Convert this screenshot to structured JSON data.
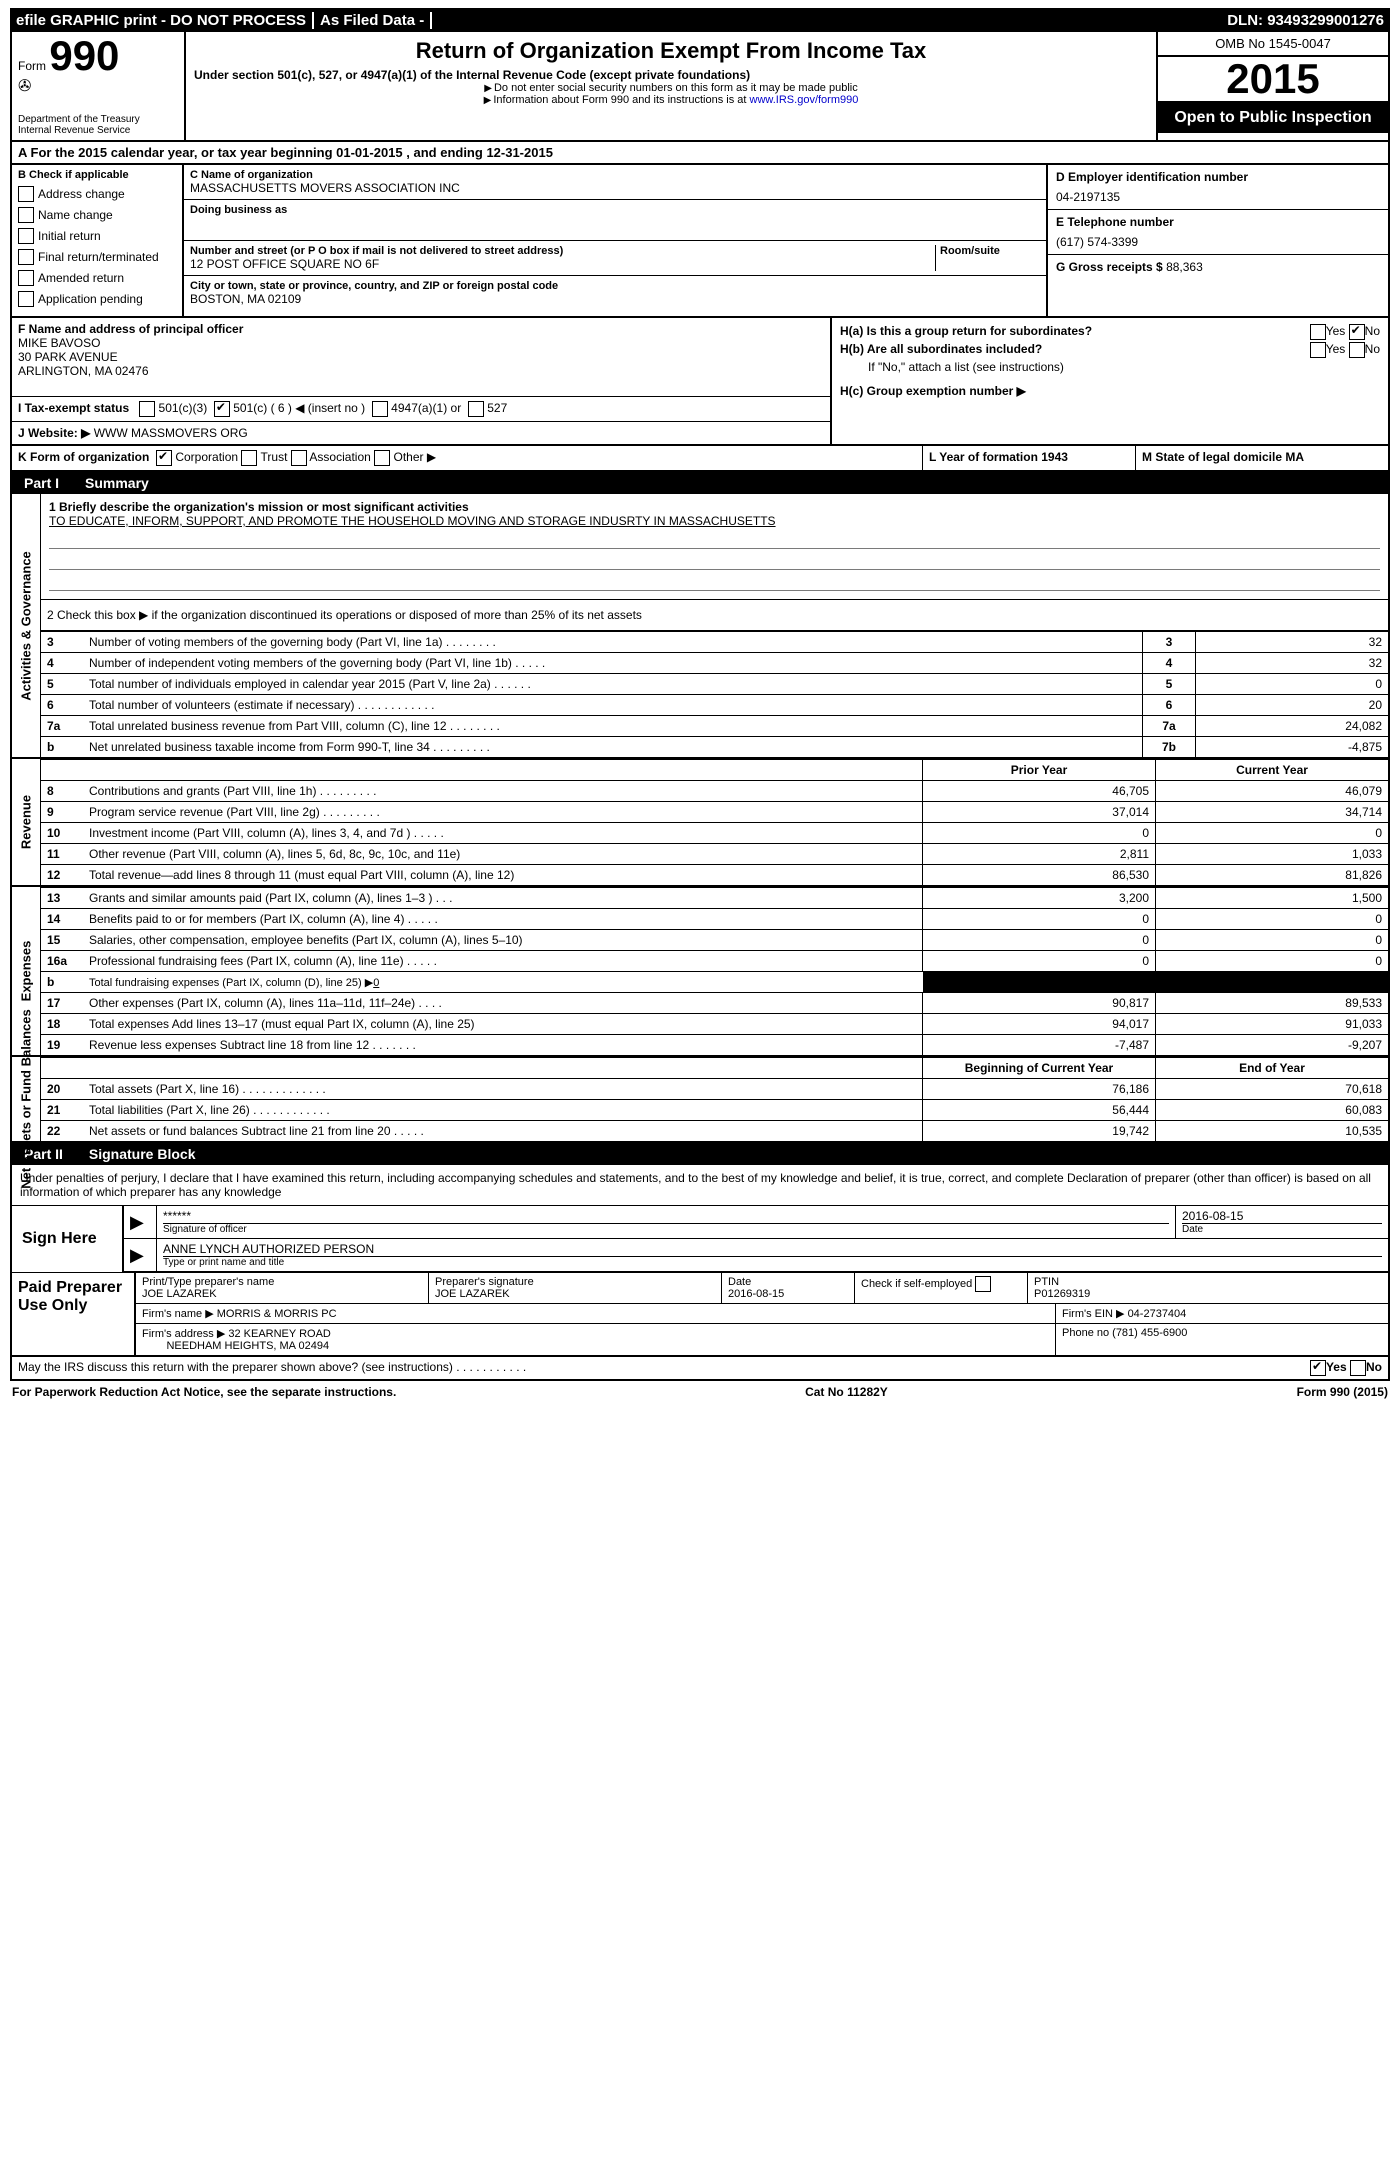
{
  "topbar": {
    "efile": "efile GRAPHIC print - DO NOT PROCESS",
    "asfiled": "As Filed Data -",
    "dln_label": "DLN:",
    "dln": "93493299001276"
  },
  "header": {
    "form_word": "Form",
    "form_number": "990",
    "dept": "Department of the Treasury",
    "irs": "Internal Revenue Service",
    "title": "Return of Organization Exempt From Income Tax",
    "subtitle": "Under section 501(c), 527, or 4947(a)(1) of the Internal Revenue Code (except private foundations)",
    "note1": "Do not enter social security numbers on this form as it may be made public",
    "note2_pre": "Information about Form 990 and its instructions is at ",
    "note2_link": "www.IRS.gov/form990",
    "omb": "OMB No 1545-0047",
    "year": "2015",
    "inspection": "Open to Public Inspection"
  },
  "rowA": {
    "prefix": "A  For the 2015 calendar year, or tax year beginning ",
    "begin": "01-01-2015",
    "mid": "  , and ending ",
    "end": "12-31-2015"
  },
  "colB": {
    "header": "B  Check if applicable",
    "items": [
      "Address change",
      "Name change",
      "Initial return",
      "Final return/terminated",
      "Amended return",
      "Application pending"
    ]
  },
  "colC": {
    "name_label": "C Name of organization",
    "name": "MASSACHUSETTS MOVERS ASSOCIATION INC",
    "dba_label": "Doing business as",
    "dba": "",
    "street_label": "Number and street (or P O  box if mail is not delivered to street address)",
    "room_label": "Room/suite",
    "street": "12 POST OFFICE SQUARE NO 6F",
    "city_label": "City or town, state or province, country, and ZIP or foreign postal code",
    "city": "BOSTON, MA  02109"
  },
  "colDE": {
    "d_label": "D Employer identification number",
    "d_value": "04-2197135",
    "e_label": "E Telephone number",
    "e_value": "(617) 574-3399",
    "g_label": "G Gross receipts $ ",
    "g_value": "88,363"
  },
  "sectionF": {
    "f_label": "F   Name and address of principal officer",
    "f_name": "MIKE BAVOSO",
    "f_addr1": "30 PARK AVENUE",
    "f_addr2": "ARLINGTON, MA  02476",
    "i_label": "I   Tax-exempt status",
    "i_opts": [
      "501(c)(3)",
      "501(c) ( 6 ) ◀ (insert no )",
      "4947(a)(1) or",
      "527"
    ],
    "j_label": "J   Website: ▶",
    "j_value": "  WWW MASSMOVERS ORG"
  },
  "sectionH": {
    "ha": "H(a)  Is this a group return for subordinates?",
    "hb": "H(b)  Are all subordinates included?",
    "hnote": "If \"No,\" attach a list  (see instructions)",
    "hc": "H(c)   Group exemption number ▶",
    "yes": "Yes",
    "no": "No"
  },
  "rowK": {
    "k_label": "K Form of organization",
    "k_opts": [
      "Corporation",
      "Trust",
      "Association",
      "Other ▶"
    ],
    "l": "L Year of formation  1943",
    "m": "M State of legal domicile  MA"
  },
  "part1": {
    "header_label": "Part I",
    "header_title": "Summary",
    "side_gov": "Activities & Governance",
    "side_rev": "Revenue",
    "side_exp": "Expenses",
    "side_net": "Net Assets or Fund Balances",
    "line1_label": "1 Briefly describe the organization's mission or most significant activities",
    "mission": "TO EDUCATE, INFORM, SUPPORT, AND PROMOTE THE HOUSEHOLD MOVING AND STORAGE INDUSRTY IN MASSACHUSETTS",
    "line2": "2  Check this box ▶    if the organization discontinued its operations or disposed of more than 25% of its net assets",
    "rows_top": [
      {
        "n": "3",
        "desc": "Number of voting members of the governing body (Part VI, line 1a)   .   .   .   .   .   .   .   .",
        "box": "3",
        "val": "32"
      },
      {
        "n": "4",
        "desc": "Number of independent voting members of the governing body (Part VI, line 1b)   .   .   .   .   .",
        "box": "4",
        "val": "32"
      },
      {
        "n": "5",
        "desc": "Total number of individuals employed in calendar year 2015 (Part V, line 2a)   .   .   .   .   .   .",
        "box": "5",
        "val": "0"
      },
      {
        "n": "6",
        "desc": "Total number of volunteers (estimate if necessary)   .   .   .   .   .   .   .   .   .   .   .   .",
        "box": "6",
        "val": "20"
      },
      {
        "n": "7a",
        "desc": "Total unrelated business revenue from Part VIII, column (C), line 12   .   .   .   .   .   .   .   .",
        "box": "7a",
        "val": "24,082"
      },
      {
        "n": "b",
        "desc": "Net unrelated business taxable income from Form 990-T, line 34   .   .   .   .   .   .   .   .   .",
        "box": "7b",
        "val": "-4,875"
      }
    ],
    "col_prior": "Prior Year",
    "col_current": "Current Year",
    "rows_rev": [
      {
        "n": "8",
        "desc": "Contributions and grants (Part VIII, line 1h)   .   .   .   .   .   .   .   .   .",
        "p": "46,705",
        "c": "46,079"
      },
      {
        "n": "9",
        "desc": "Program service revenue (Part VIII, line 2g)   .   .   .   .   .   .   .   .   .",
        "p": "37,014",
        "c": "34,714"
      },
      {
        "n": "10",
        "desc": "Investment income (Part VIII, column (A), lines 3, 4, and 7d )   .   .   .   .   .",
        "p": "0",
        "c": "0"
      },
      {
        "n": "11",
        "desc": "Other revenue (Part VIII, column (A), lines 5, 6d, 8c, 9c, 10c, and 11e)",
        "p": "2,811",
        "c": "1,033"
      },
      {
        "n": "12",
        "desc": "Total revenue—add lines 8 through 11 (must equal Part VIII, column (A), line 12)",
        "p": "86,530",
        "c": "81,826"
      }
    ],
    "rows_exp": [
      {
        "n": "13",
        "desc": "Grants and similar amounts paid (Part IX, column (A), lines 1–3 )   .   .   .",
        "p": "3,200",
        "c": "1,500"
      },
      {
        "n": "14",
        "desc": "Benefits paid to or for members (Part IX, column (A), line 4)   .   .   .   .   .",
        "p": "0",
        "c": "0"
      },
      {
        "n": "15",
        "desc": "Salaries, other compensation, employee benefits (Part IX, column (A), lines 5–10)",
        "p": "0",
        "c": "0"
      },
      {
        "n": "16a",
        "desc": "Professional fundraising fees (Part IX, column (A), line 11e)   .   .   .   .   .",
        "p": "0",
        "c": "0"
      }
    ],
    "row_b": {
      "n": "b",
      "desc": "Total fundraising expenses (Part IX, column (D), line 25) ▶",
      "val": "0"
    },
    "rows_exp2": [
      {
        "n": "17",
        "desc": "Other expenses (Part IX, column (A), lines 11a–11d, 11f–24e)   .   .   .   .",
        "p": "90,817",
        "c": "89,533"
      },
      {
        "n": "18",
        "desc": "Total expenses  Add lines 13–17 (must equal Part IX, column (A), line 25)",
        "p": "94,017",
        "c": "91,033"
      },
      {
        "n": "19",
        "desc": "Revenue less expenses  Subtract line 18 from line 12   .   .   .   .   .   .   .",
        "p": "-7,487",
        "c": "-9,207"
      }
    ],
    "col_begin": "Beginning of Current Year",
    "col_end": "End of Year",
    "rows_net": [
      {
        "n": "20",
        "desc": "Total assets (Part X, line 16)   .   .   .   .   .   .   .   .   .   .   .   .   .",
        "p": "76,186",
        "c": "70,618"
      },
      {
        "n": "21",
        "desc": "Total liabilities (Part X, line 26)   .   .   .   .   .   .   .   .   .   .   .   .",
        "p": "56,444",
        "c": "60,083"
      },
      {
        "n": "22",
        "desc": "Net assets or fund balances  Subtract line 21 from line 20   .   .   .   .   .",
        "p": "19,742",
        "c": "10,535"
      }
    ]
  },
  "part2": {
    "header_label": "Part II",
    "header_title": "Signature Block",
    "perjury": "Under penalties of perjury, I declare that I have examined this return, including accompanying schedules and statements, and to the best of my knowledge and belief, it is true, correct, and complete  Declaration of preparer (other than officer) is based on all information of which preparer has any knowledge",
    "sign_here": "Sign Here",
    "stars": "******",
    "sig_officer_label": "Signature of officer",
    "sig_date": "2016-08-15",
    "date_label": "Date",
    "officer_name": "ANNE LYNCH AUTHORIZED PERSON",
    "officer_label": "Type or print name and title",
    "paid": "Paid Preparer Use Only",
    "prep_name_label": "Print/Type preparer's name",
    "prep_name": "JOE LAZAREK",
    "prep_sig_label": "Preparer's signature",
    "prep_sig": "JOE LAZAREK",
    "prep_date": "2016-08-15",
    "check_self": "Check     if self-employed",
    "ptin_label": "PTIN",
    "ptin": "P01269319",
    "firm_name_label": "Firm's name   ▶",
    "firm_name": "MORRIS & MORRIS PC",
    "firm_ein_label": "Firm's EIN ▶",
    "firm_ein": "04-2737404",
    "firm_addr_label": "Firm's address ▶",
    "firm_addr1": "32 KEARNEY ROAD",
    "firm_addr2": "NEEDHAM HEIGHTS, MA  02494",
    "phone_label": "Phone no  ",
    "phone": "(781) 455-6900"
  },
  "footer": {
    "irs_discuss": "May the IRS discuss this return with the preparer shown above? (see instructions)   .   .   .   .   .   .   .   .   .   .   .",
    "paperwork": "For Paperwork Reduction Act Notice, see the separate instructions.",
    "catno": "Cat No  11282Y",
    "formver": "Form 990 (2015)"
  }
}
